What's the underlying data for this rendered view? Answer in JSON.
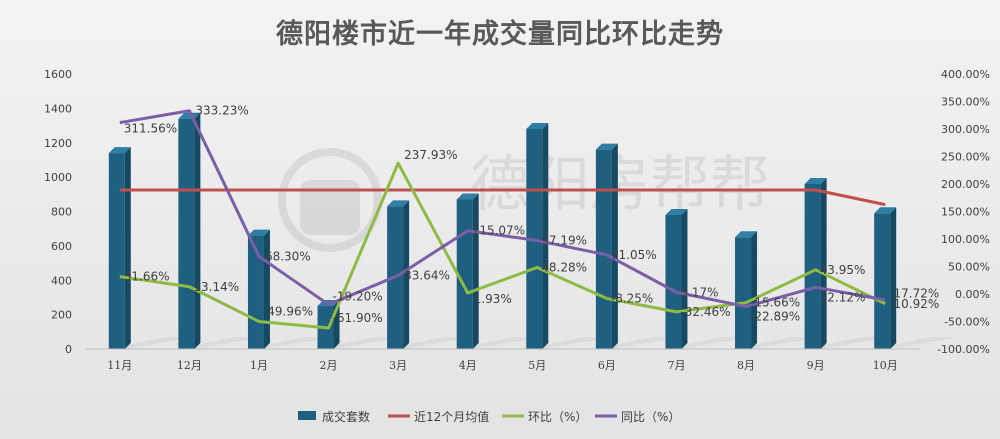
{
  "chart_data": {
    "type": "bar",
    "title": "德阳楼市近一年成交量同比环比走势",
    "categories": [
      "11月",
      "12月",
      "1月",
      "2月",
      "3月",
      "4月",
      "5月",
      "6月",
      "7月",
      "8月",
      "9月",
      "10月"
    ],
    "ylim": [
      0,
      1600
    ],
    "y_ticks": [
      "0",
      "200",
      "400",
      "600",
      "800",
      "1000",
      "1200",
      "1400",
      "1600"
    ],
    "y2lim": [
      -100,
      400
    ],
    "y2_ticks": [
      "-100.00%",
      "-50.00%",
      "0.00%",
      "50.00%",
      "100.00%",
      "150.00%",
      "200.00%",
      "250.00%",
      "300.00%",
      "350.00%",
      "400.00%"
    ],
    "legend_position": "bottom",
    "grid": false,
    "series": [
      {
        "name": "成交套数",
        "kind": "bar",
        "axis": "left",
        "color": "#1f5f80",
        "values": [
          1140,
          1340,
          660,
          250,
          830,
          870,
          1280,
          1160,
          780,
          650,
          960,
          790
        ]
      },
      {
        "name": "近12个月均值",
        "kind": "line",
        "axis": "left",
        "color": "#c0504d",
        "values": [
          925,
          925,
          925,
          925,
          925,
          925,
          925,
          925,
          925,
          925,
          925,
          840
        ]
      },
      {
        "name": "环比（%）",
        "kind": "line",
        "axis": "right",
        "color": "#8dbb45",
        "values": [
          31.66,
          13.14,
          -49.96,
          -61.9,
          237.93,
          1.93,
          48.28,
          -8.25,
          -32.46,
          -15.66,
          43.95,
          -17.72
        ],
        "labels": [
          "31.66%",
          "13.14%",
          "-49.96%",
          "-61.90%",
          "237.93%",
          "1.93%",
          "48.28%",
          "-8.25%",
          "-32.46%",
          "-15.66%",
          "43.95%",
          "-17.72%"
        ]
      },
      {
        "name": "同比（%）",
        "kind": "line",
        "axis": "right",
        "color": "#7b5ea7",
        "values": [
          311.56,
          333.23,
          68.3,
          -19.2,
          33.64,
          115.07,
          97.19,
          71.05,
          3.17,
          -22.89,
          12.12,
          -10.92
        ],
        "labels": [
          "311.56%",
          "333.23%",
          "68.30%",
          "-19.20%",
          "33.64%",
          "115.07%",
          "97.19%",
          "71.05%",
          "3.17%",
          "-22.89%",
          "12.12%",
          "-10.92%"
        ]
      }
    ]
  },
  "watermark": "德阳房帮帮"
}
